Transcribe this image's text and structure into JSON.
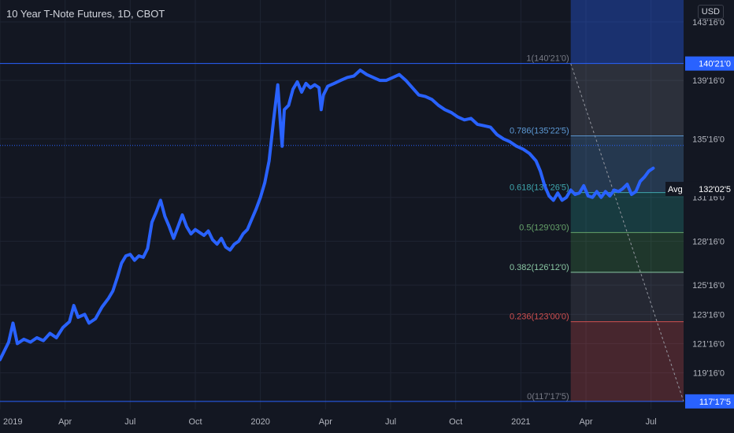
{
  "header": {
    "title": "10 Year T-Note Futures, 1D, CBOT",
    "currency": "USD"
  },
  "colors": {
    "background": "#131722",
    "grid": "#1f2433",
    "price_line": "#2962ff",
    "fib_line": "#2962ff",
    "axis_text": "#b2b5be",
    "label_bg": "#2962ff",
    "avg_label_bg": "#131722"
  },
  "chart_data": {
    "type": "line",
    "title": "10 Year T-Note Futures, 1D, CBOT",
    "xlabel": "",
    "ylabel": "",
    "y_display_range": [
      117.0,
      145.0
    ],
    "x_ticks": [
      {
        "label": "2019",
        "month": 0
      },
      {
        "label": "Apr",
        "month": 3
      },
      {
        "label": "Jul",
        "month": 6
      },
      {
        "label": "Oct",
        "month": 9
      },
      {
        "label": "2020",
        "month": 12
      },
      {
        "label": "Apr",
        "month": 15
      },
      {
        "label": "Jul",
        "month": 18
      },
      {
        "label": "Oct",
        "month": 21
      },
      {
        "label": "2021",
        "month": 24
      },
      {
        "label": "Apr",
        "month": 27
      },
      {
        "label": "Jul",
        "month": 30
      }
    ],
    "y_ticks": [
      {
        "label": "143'16'0",
        "value": 143.5
      },
      {
        "label": "139'16'0",
        "value": 139.5
      },
      {
        "label": "135'16'0",
        "value": 135.5
      },
      {
        "label": "131'16'0",
        "value": 131.5
      },
      {
        "label": "128'16'0",
        "value": 128.5
      },
      {
        "label": "125'16'0",
        "value": 125.5
      },
      {
        "label": "123'16'0",
        "value": 123.5
      },
      {
        "label": "121'16'0",
        "value": 121.5
      },
      {
        "label": "119'16'0",
        "value": 119.5
      }
    ],
    "price_labels": [
      {
        "label": "140'21'0",
        "value": 140.656
      },
      {
        "label": "132'02'5",
        "value": 132.078,
        "prefix": "Avg"
      },
      {
        "label": "117'17'5",
        "value": 117.547
      }
    ],
    "fib_levels": [
      {
        "ratio_label": "1(140'21'0)",
        "value": 140.656,
        "color": "#787b86"
      },
      {
        "ratio_label": "0.786(135'22'5)",
        "value": 135.703,
        "color": "#5d9ad6"
      },
      {
        "ratio_label": "0.618(131'26'5)",
        "value": 131.828,
        "color": "#3fa6ad"
      },
      {
        "ratio_label": "0.5(129'03'0)",
        "value": 129.094,
        "color": "#66a36a"
      },
      {
        "ratio_label": "0.382(126'12'0)",
        "value": 126.375,
        "color": "#8ac7a3"
      },
      {
        "ratio_label": "0.236(123'00'0)",
        "value": 123.0,
        "color": "#d14f4f"
      },
      {
        "ratio_label": "0(117'17'5)",
        "value": 117.547,
        "color": "#787b86"
      }
    ],
    "fib_zone": {
      "x_start_month": 26.3,
      "x_end_month": 31.5
    },
    "dotted_reference": {
      "value": 135.05
    },
    "series": [
      {
        "points": [
          [
            0.0,
            120.4
          ],
          [
            0.2,
            121.0
          ],
          [
            0.4,
            121.6
          ],
          [
            0.6,
            122.9
          ],
          [
            0.8,
            121.5
          ],
          [
            1.1,
            121.8
          ],
          [
            1.4,
            121.6
          ],
          [
            1.7,
            121.9
          ],
          [
            2.0,
            121.7
          ],
          [
            2.3,
            122.2
          ],
          [
            2.6,
            121.9
          ],
          [
            2.9,
            122.6
          ],
          [
            3.2,
            123.0
          ],
          [
            3.4,
            124.1
          ],
          [
            3.6,
            123.3
          ],
          [
            3.9,
            123.5
          ],
          [
            4.1,
            122.9
          ],
          [
            4.4,
            123.2
          ],
          [
            4.7,
            124.0
          ],
          [
            5.0,
            124.6
          ],
          [
            5.2,
            125.1
          ],
          [
            5.4,
            126.0
          ],
          [
            5.6,
            127.0
          ],
          [
            5.8,
            127.5
          ],
          [
            6.0,
            127.6
          ],
          [
            6.2,
            127.2
          ],
          [
            6.4,
            127.5
          ],
          [
            6.6,
            127.4
          ],
          [
            6.8,
            128.0
          ],
          [
            7.0,
            129.8
          ],
          [
            7.2,
            130.5
          ],
          [
            7.4,
            131.3
          ],
          [
            7.6,
            130.2
          ],
          [
            7.8,
            129.5
          ],
          [
            8.0,
            128.7
          ],
          [
            8.2,
            129.5
          ],
          [
            8.4,
            130.3
          ],
          [
            8.6,
            129.5
          ],
          [
            8.8,
            129.0
          ],
          [
            9.0,
            129.3
          ],
          [
            9.2,
            129.1
          ],
          [
            9.4,
            128.9
          ],
          [
            9.6,
            129.2
          ],
          [
            9.8,
            128.6
          ],
          [
            10.0,
            128.3
          ],
          [
            10.2,
            128.7
          ],
          [
            10.4,
            128.1
          ],
          [
            10.6,
            127.9
          ],
          [
            10.8,
            128.3
          ],
          [
            11.0,
            128.5
          ],
          [
            11.2,
            129.0
          ],
          [
            11.4,
            129.3
          ],
          [
            11.6,
            130.0
          ],
          [
            11.8,
            130.7
          ],
          [
            12.0,
            131.5
          ],
          [
            12.2,
            132.5
          ],
          [
            12.4,
            134.0
          ],
          [
            12.6,
            136.7
          ],
          [
            12.8,
            139.2
          ],
          [
            12.9,
            137.0
          ],
          [
            13.0,
            135.0
          ],
          [
            13.1,
            137.5
          ],
          [
            13.3,
            137.8
          ],
          [
            13.5,
            138.9
          ],
          [
            13.7,
            139.4
          ],
          [
            13.9,
            138.7
          ],
          [
            14.1,
            139.3
          ],
          [
            14.3,
            139.0
          ],
          [
            14.5,
            139.2
          ],
          [
            14.7,
            139.0
          ],
          [
            14.8,
            137.5
          ],
          [
            14.9,
            138.5
          ],
          [
            15.1,
            139.1
          ],
          [
            15.4,
            139.3
          ],
          [
            15.7,
            139.5
          ],
          [
            16.0,
            139.7
          ],
          [
            16.3,
            139.8
          ],
          [
            16.6,
            140.2
          ],
          [
            16.9,
            139.9
          ],
          [
            17.2,
            139.7
          ],
          [
            17.5,
            139.5
          ],
          [
            17.8,
            139.5
          ],
          [
            18.1,
            139.7
          ],
          [
            18.4,
            139.9
          ],
          [
            18.7,
            139.5
          ],
          [
            19.0,
            139.0
          ],
          [
            19.3,
            138.5
          ],
          [
            19.6,
            138.4
          ],
          [
            19.9,
            138.2
          ],
          [
            20.2,
            137.8
          ],
          [
            20.5,
            137.5
          ],
          [
            20.8,
            137.3
          ],
          [
            21.1,
            137.0
          ],
          [
            21.4,
            136.8
          ],
          [
            21.7,
            136.9
          ],
          [
            22.0,
            136.5
          ],
          [
            22.3,
            136.4
          ],
          [
            22.6,
            136.3
          ],
          [
            22.9,
            135.8
          ],
          [
            23.2,
            135.5
          ],
          [
            23.5,
            135.3
          ],
          [
            23.8,
            135.0
          ],
          [
            24.1,
            134.8
          ],
          [
            24.4,
            134.5
          ],
          [
            24.7,
            134.0
          ],
          [
            24.9,
            133.3
          ],
          [
            25.1,
            132.3
          ],
          [
            25.3,
            131.6
          ],
          [
            25.5,
            131.3
          ],
          [
            25.7,
            131.8
          ],
          [
            25.9,
            131.3
          ],
          [
            26.1,
            131.5
          ],
          [
            26.3,
            132.0
          ],
          [
            26.5,
            131.7
          ],
          [
            26.7,
            131.8
          ],
          [
            26.9,
            132.3
          ],
          [
            27.1,
            131.6
          ],
          [
            27.3,
            131.5
          ],
          [
            27.5,
            131.9
          ],
          [
            27.7,
            131.5
          ],
          [
            27.9,
            131.9
          ],
          [
            28.1,
            131.6
          ],
          [
            28.3,
            132.0
          ],
          [
            28.5,
            131.9
          ],
          [
            28.7,
            132.1
          ],
          [
            28.9,
            132.4
          ],
          [
            29.1,
            131.7
          ],
          [
            29.3,
            131.9
          ],
          [
            29.5,
            132.6
          ],
          [
            29.7,
            132.9
          ],
          [
            29.9,
            133.3
          ],
          [
            30.1,
            133.5
          ]
        ]
      }
    ]
  }
}
